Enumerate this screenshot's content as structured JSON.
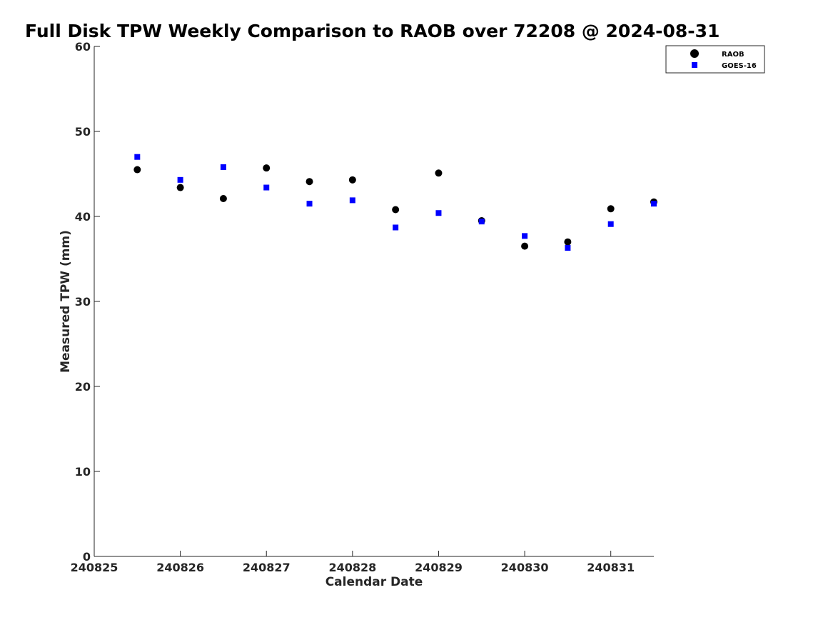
{
  "chart_data": {
    "type": "scatter",
    "title": "Full Disk TPW Weekly Comparison to RAOB over 72208 @ 2024-08-31",
    "xlabel": "Calendar Date",
    "ylabel": "Measured TPW (mm)",
    "xlim": [
      0,
      6.5
    ],
    "ylim": [
      0,
      60
    ],
    "xticks": [
      0,
      1,
      2,
      3,
      4,
      5,
      6
    ],
    "xtick_labels": [
      "240825",
      "240826",
      "240827",
      "240828",
      "240829",
      "240830",
      "240831"
    ],
    "yticks": [
      0,
      10,
      20,
      30,
      40,
      50,
      60
    ],
    "ytick_labels": [
      "0",
      "10",
      "20",
      "30",
      "40",
      "50",
      "60"
    ],
    "grid": false,
    "legend_position": "top-right",
    "series": [
      {
        "name": "RAOB",
        "marker": "circle",
        "color": "#000000",
        "x": [
          0.5,
          1.0,
          1.5,
          2.0,
          2.5,
          3.0,
          3.5,
          4.0,
          4.5,
          5.0,
          5.5,
          6.0,
          6.5
        ],
        "values": [
          45.5,
          43.4,
          42.1,
          45.7,
          44.1,
          44.3,
          40.8,
          45.1,
          39.5,
          36.5,
          37.0,
          40.9,
          41.7
        ]
      },
      {
        "name": "GOES-16",
        "marker": "square",
        "color": "#0000ff",
        "x": [
          0.5,
          1.0,
          1.5,
          2.0,
          2.5,
          3.0,
          3.5,
          4.0,
          4.5,
          5.0,
          5.5,
          6.0,
          6.5
        ],
        "values": [
          47.0,
          44.3,
          45.8,
          43.4,
          41.5,
          41.9,
          38.7,
          40.4,
          39.4,
          37.7,
          36.3,
          39.1,
          41.5
        ]
      }
    ]
  }
}
